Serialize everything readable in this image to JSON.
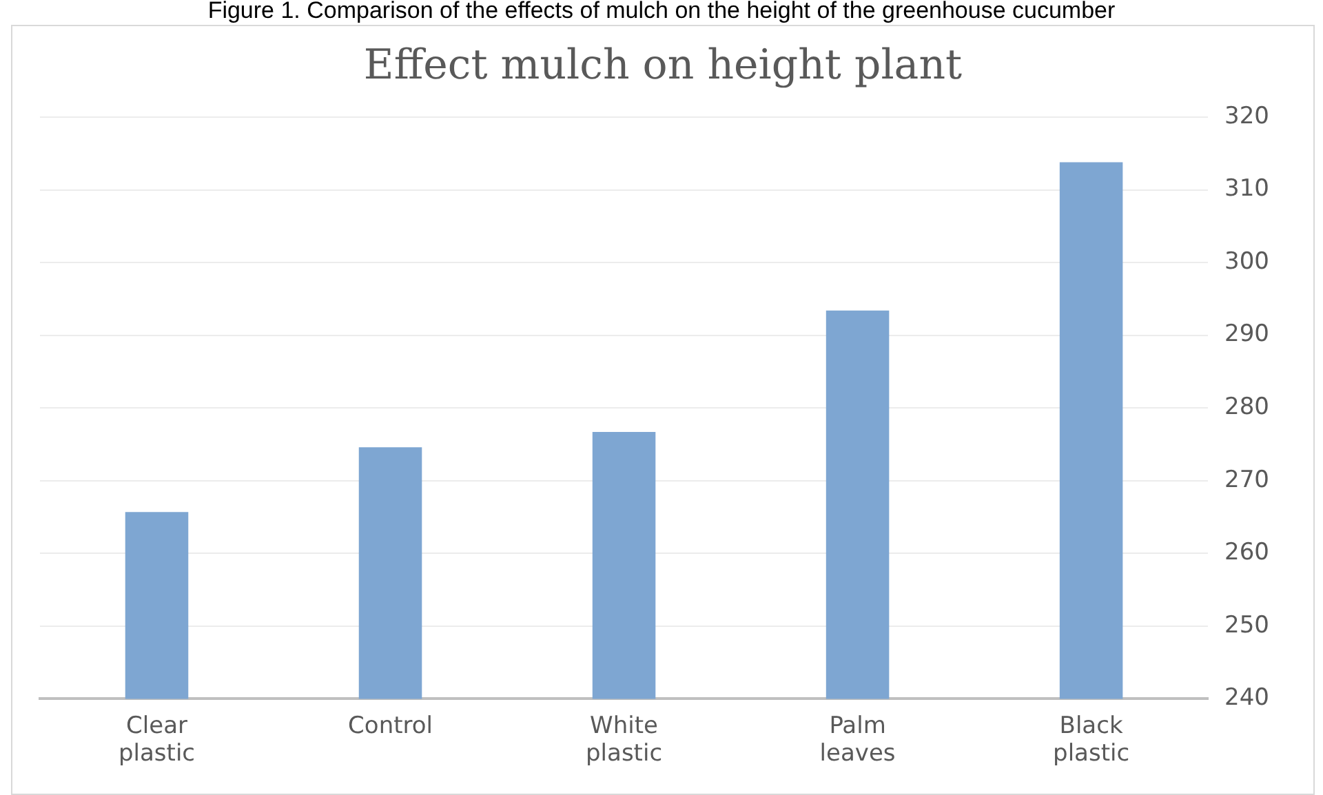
{
  "chart_data": {
    "type": "bar",
    "title": "Effect mulch on height plant",
    "annotations": [
      "Figure 1. Comparison of the effects of mulch on the height of the greenhouse cucumber"
    ],
    "categories": [
      "Clear plastic",
      "Control",
      "White plastic",
      "Palm leaves",
      "Black plastic"
    ],
    "values": [
      265.7,
      274.6,
      276.7,
      293.4,
      313.8
    ],
    "color": "#7ea6d2",
    "ylim": [
      240,
      320
    ],
    "yticks": [
      240,
      250,
      260,
      270,
      280,
      290,
      300,
      310,
      320
    ],
    "grid": "y",
    "legend": false
  }
}
